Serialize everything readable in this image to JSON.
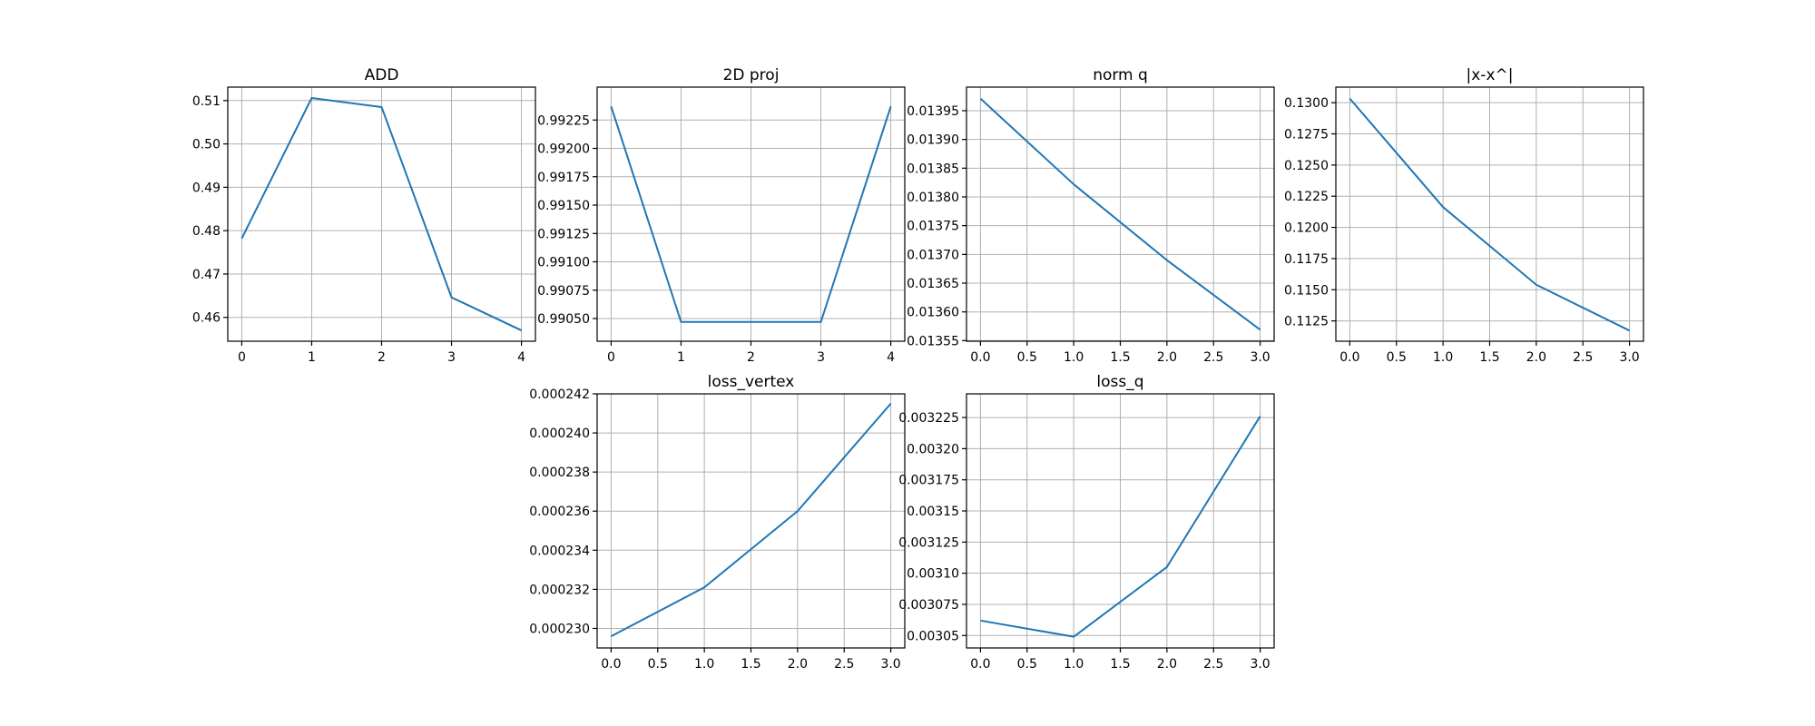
{
  "colors": {
    "series_line": "#1f77b4",
    "grid": "#b0b0b0",
    "axes": "#000000",
    "background": "#ffffff"
  },
  "chart_data": [
    {
      "type": "line",
      "title": "ADD",
      "grid": true,
      "x": [
        0,
        1,
        2,
        3,
        4
      ],
      "xlim": [
        -0.2,
        4.2
      ],
      "xticks": [
        0,
        1,
        2,
        3,
        4
      ],
      "xtick_labels": [
        "0",
        "1",
        "2",
        "3",
        "4"
      ],
      "ylim": [
        0.4545,
        0.5131
      ],
      "yticks": [
        0.46,
        0.47,
        0.48,
        0.49,
        0.5,
        0.51
      ],
      "ytick_labels": [
        "0.46",
        "0.47",
        "0.48",
        "0.49",
        "0.50",
        "0.51"
      ],
      "series": [
        {
          "values": [
            0.4782,
            0.5106,
            0.5085,
            0.4646,
            0.457
          ]
        }
      ]
    },
    {
      "type": "line",
      "title": "2D proj",
      "grid": true,
      "x": [
        0,
        1,
        2,
        3,
        4
      ],
      "xlim": [
        -0.2,
        4.2
      ],
      "xticks": [
        0,
        1,
        2,
        3,
        4
      ],
      "xtick_labels": [
        "0",
        "1",
        "2",
        "3",
        "4"
      ],
      "ylim": [
        0.9903,
        0.99254
      ],
      "yticks": [
        0.9905,
        0.99075,
        0.991,
        0.99125,
        0.9915,
        0.99175,
        0.992,
        0.99225
      ],
      "ytick_labels": [
        "0.99050",
        "0.99075",
        "0.99100",
        "0.99125",
        "0.99150",
        "0.99175",
        "0.99200",
        "0.99225"
      ],
      "series": [
        {
          "values": [
            0.99237,
            0.99047,
            0.99047,
            0.99047,
            0.99237
          ]
        }
      ]
    },
    {
      "type": "line",
      "title": "norm q",
      "grid": true,
      "x": [
        0,
        1,
        2,
        3
      ],
      "xlim": [
        -0.15,
        3.15
      ],
      "xticks": [
        0,
        0.5,
        1,
        1.5,
        2,
        2.5,
        3
      ],
      "xtick_labels": [
        "0.0",
        "0.5",
        "1.0",
        "1.5",
        "2.0",
        "2.5",
        "3.0"
      ],
      "ylim": [
        0.013549,
        0.013991
      ],
      "yticks": [
        0.01355,
        0.0136,
        0.01365,
        0.0137,
        0.01375,
        0.0138,
        0.01385,
        0.0139,
        0.01395
      ],
      "ytick_labels": [
        "0.01355",
        "0.01360",
        "0.01365",
        "0.01370",
        "0.01375",
        "0.01380",
        "0.01385",
        "0.01390",
        "0.01395"
      ],
      "series": [
        {
          "values": [
            0.013971,
            0.013822,
            0.01369,
            0.013569
          ]
        }
      ]
    },
    {
      "type": "line",
      "title": "|x-x^|",
      "grid": true,
      "x": [
        0,
        1,
        2,
        3
      ],
      "xlim": [
        -0.15,
        3.15
      ],
      "xticks": [
        0,
        0.5,
        1,
        1.5,
        2,
        2.5,
        3
      ],
      "xtick_labels": [
        "0.0",
        "0.5",
        "1.0",
        "1.5",
        "2.0",
        "2.5",
        "3.0"
      ],
      "ylim": [
        0.11087,
        0.13125
      ],
      "yticks": [
        0.1125,
        0.115,
        0.1175,
        0.12,
        0.1225,
        0.125,
        0.1275,
        0.13
      ],
      "ytick_labels": [
        "0.1125",
        "0.1150",
        "0.1175",
        "0.1200",
        "0.1225",
        "0.1250",
        "0.1275",
        "0.1300"
      ],
      "series": [
        {
          "values": [
            0.13033,
            0.12163,
            0.1154,
            0.11172
          ]
        }
      ]
    },
    {
      "type": "line",
      "title": "loss_vertex",
      "grid": true,
      "x": [
        0,
        1,
        2,
        3
      ],
      "xlim": [
        -0.15,
        3.15
      ],
      "xticks": [
        0,
        0.5,
        1,
        1.5,
        2,
        2.5,
        3
      ],
      "xtick_labels": [
        "0.0",
        "0.5",
        "1.0",
        "1.5",
        "2.0",
        "2.5",
        "3.0"
      ],
      "ylim": [
        0.000229,
        0.000242
      ],
      "yticks": [
        0.00023,
        0.000232,
        0.000234,
        0.000236,
        0.000238,
        0.00024,
        0.000242
      ],
      "ytick_labels": [
        "0.000230",
        "0.000232",
        "0.000234",
        "0.000236",
        "0.000238",
        "0.000240",
        "0.000242"
      ],
      "series": [
        {
          "values": [
            0.0002296,
            0.0002321,
            0.000236,
            0.0002415
          ]
        }
      ]
    },
    {
      "type": "line",
      "title": "loss_q",
      "grid": true,
      "x": [
        0,
        1,
        2,
        3
      ],
      "xlim": [
        -0.15,
        3.15
      ],
      "xticks": [
        0,
        0.5,
        1,
        1.5,
        2,
        2.5,
        3
      ],
      "xtick_labels": [
        "0.0",
        "0.5",
        "1.0",
        "1.5",
        "2.0",
        "2.5",
        "3.0"
      ],
      "ylim": [
        0.00304,
        0.003244
      ],
      "yticks": [
        0.00305,
        0.003075,
        0.0031,
        0.003125,
        0.00315,
        0.003175,
        0.0032,
        0.003225
      ],
      "ytick_labels": [
        "0.00305",
        "0.003075",
        "0.00310",
        "0.003125",
        "0.00315",
        "0.003175",
        "0.00320",
        "0.003225"
      ],
      "series": [
        {
          "values": [
            0.003062,
            0.003049,
            0.003105,
            0.003226
          ]
        }
      ]
    }
  ]
}
